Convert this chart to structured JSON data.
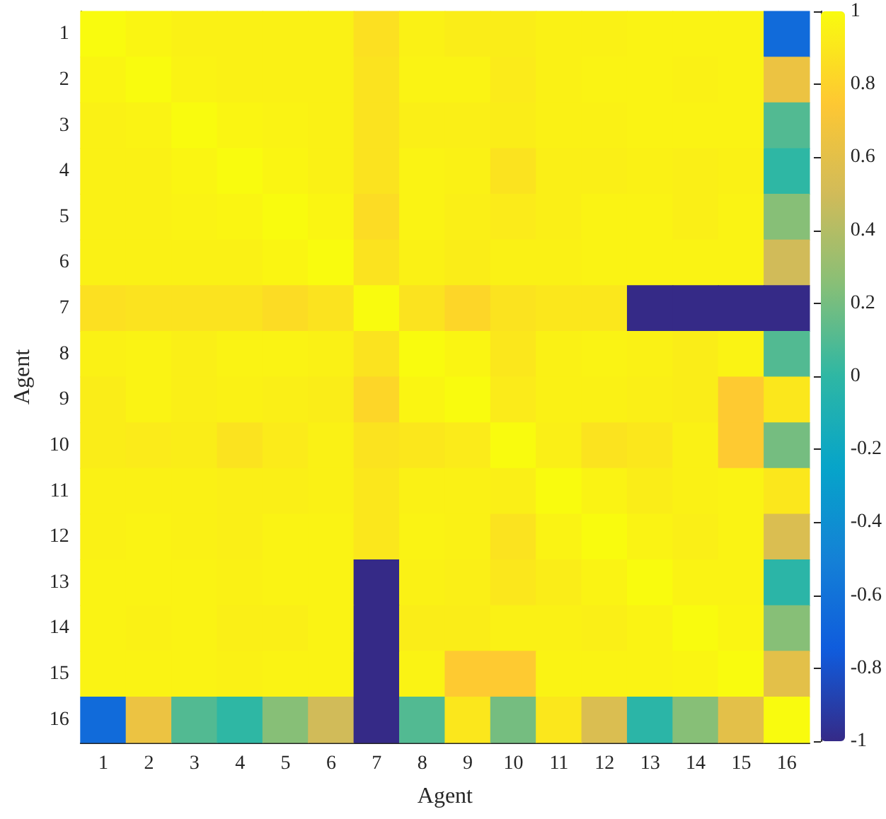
{
  "chart_data": {
    "type": "heatmap",
    "xlabel": "Agent",
    "ylabel": "Agent",
    "categories": [
      "1",
      "2",
      "3",
      "4",
      "5",
      "6",
      "7",
      "8",
      "9",
      "10",
      "11",
      "12",
      "13",
      "14",
      "15",
      "16"
    ],
    "y_categories": [
      "1",
      "2",
      "3",
      "4",
      "5",
      "6",
      "7",
      "8",
      "9",
      "10",
      "11",
      "12",
      "13",
      "14",
      "15",
      "16"
    ],
    "cells": [
      [
        1,
        0.97,
        0.95,
        0.95,
        0.95,
        0.95,
        0.87,
        0.95,
        0.93,
        0.93,
        0.95,
        0.95,
        0.96,
        0.96,
        0.96,
        -0.65
      ],
      [
        0.97,
        1,
        0.96,
        0.95,
        0.95,
        0.95,
        0.88,
        0.96,
        0.96,
        0.92,
        0.95,
        0.96,
        0.96,
        0.95,
        0.96,
        0.65
      ],
      [
        0.95,
        0.96,
        1,
        0.97,
        0.96,
        0.95,
        0.88,
        0.94,
        0.94,
        0.93,
        0.95,
        0.95,
        0.96,
        0.96,
        0.96,
        0.1
      ],
      [
        0.95,
        0.95,
        0.97,
        1,
        0.97,
        0.95,
        0.88,
        0.96,
        0.95,
        0.88,
        0.94,
        0.94,
        0.95,
        0.94,
        0.95,
        0
      ],
      [
        0.95,
        0.95,
        0.96,
        0.97,
        1,
        0.97,
        0.85,
        0.96,
        0.94,
        0.92,
        0.94,
        0.96,
        0.96,
        0.94,
        0.96,
        0.25
      ],
      [
        0.95,
        0.95,
        0.95,
        0.95,
        0.97,
        1,
        0.88,
        0.95,
        0.93,
        0.95,
        0.95,
        0.96,
        0.96,
        0.96,
        0.96,
        0.5
      ],
      [
        0.87,
        0.88,
        0.88,
        0.88,
        0.85,
        0.88,
        1,
        0.88,
        0.82,
        0.88,
        0.9,
        0.9,
        -1,
        -1,
        -1,
        -1
      ],
      [
        0.95,
        0.96,
        0.94,
        0.96,
        0.96,
        0.95,
        0.88,
        1,
        0.97,
        0.9,
        0.95,
        0.96,
        0.95,
        0.93,
        0.96,
        0.1
      ],
      [
        0.93,
        0.96,
        0.94,
        0.95,
        0.94,
        0.93,
        0.82,
        0.97,
        1,
        0.92,
        0.95,
        0.95,
        0.94,
        0.93,
        0.76,
        0.9
      ],
      [
        0.93,
        0.92,
        0.93,
        0.88,
        0.92,
        0.95,
        0.88,
        0.9,
        0.92,
        1,
        0.94,
        0.88,
        0.9,
        0.95,
        0.76,
        0.2
      ],
      [
        0.95,
        0.95,
        0.95,
        0.94,
        0.94,
        0.95,
        0.9,
        0.95,
        0.95,
        0.94,
        1,
        0.96,
        0.93,
        0.95,
        0.96,
        0.9
      ],
      [
        0.95,
        0.96,
        0.95,
        0.94,
        0.96,
        0.96,
        0.9,
        0.96,
        0.95,
        0.88,
        0.96,
        1,
        0.96,
        0.94,
        0.96,
        0.55
      ],
      [
        0.96,
        0.96,
        0.96,
        0.95,
        0.96,
        0.96,
        -1,
        0.95,
        0.94,
        0.9,
        0.93,
        0.96,
        1,
        0.96,
        0.96,
        -0.02
      ],
      [
        0.96,
        0.95,
        0.96,
        0.94,
        0.94,
        0.96,
        -1,
        0.93,
        0.93,
        0.95,
        0.95,
        0.94,
        0.96,
        1,
        0.97,
        0.25
      ],
      [
        0.96,
        0.96,
        0.96,
        0.95,
        0.96,
        0.96,
        -1,
        0.96,
        0.76,
        0.76,
        0.96,
        0.96,
        0.96,
        0.97,
        1,
        0.6
      ],
      [
        -0.65,
        0.65,
        0.1,
        0,
        0.25,
        0.5,
        -1,
        0.1,
        0.9,
        0.2,
        0.9,
        0.55,
        -0.02,
        0.25,
        0.6,
        1
      ]
    ],
    "clim": [
      -1,
      1
    ],
    "cticks": [
      -1,
      -0.8,
      -0.6,
      -0.4,
      -0.2,
      0,
      0.2,
      0.4,
      0.6,
      0.8,
      1
    ]
  }
}
